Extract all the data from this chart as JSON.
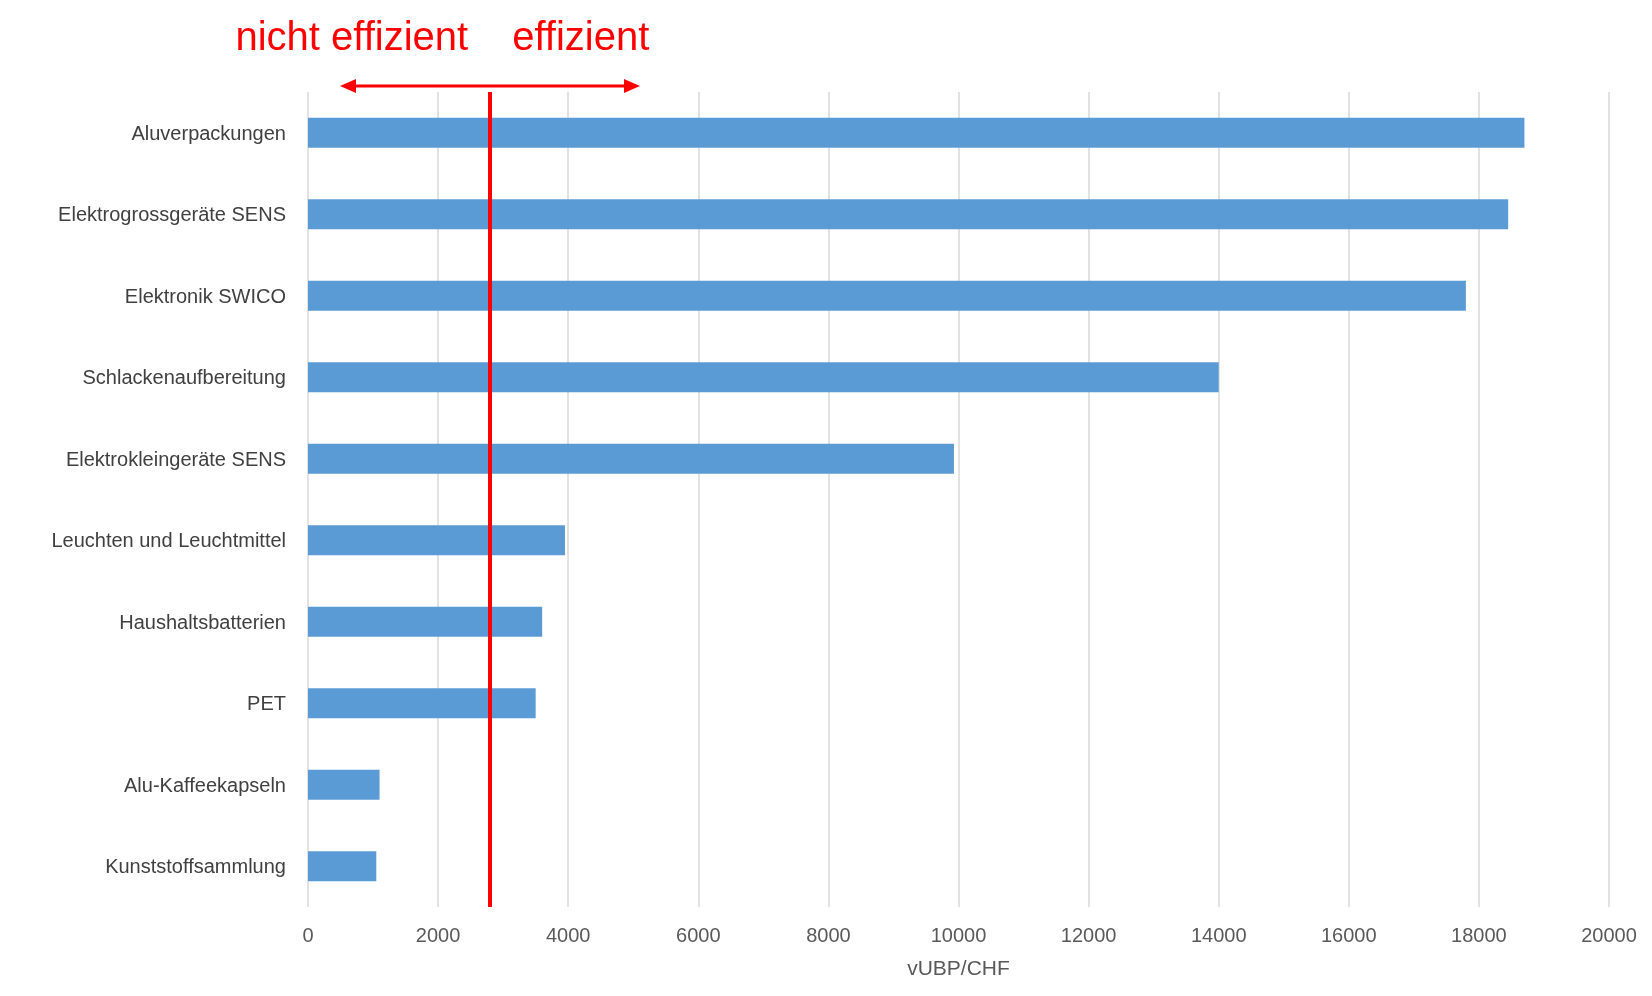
{
  "chart_data": {
    "type": "bar",
    "orientation": "horizontal",
    "xlabel": "vUBP/CHF",
    "categories": [
      "Aluverpackungen",
      "Elektrogrossgeräte SENS",
      "Elektronik SWICO",
      "Schlackenaufbereitung",
      "Elektrokleingeräte SENS",
      "Leuchten und Leuchtmittel",
      "Haushaltsbatterien",
      "PET",
      "Alu-Kaffeekapseln",
      "Kunststoffsammlung"
    ],
    "values": [
      18700,
      18450,
      17800,
      14000,
      9930,
      3950,
      3600,
      3500,
      1100,
      1050
    ],
    "color": "#5b9bd5",
    "xlim": [
      0,
      20000
    ],
    "xticks": [
      0,
      2000,
      4000,
      6000,
      8000,
      10000,
      12000,
      14000,
      16000,
      18000,
      20000
    ],
    "grid": "x",
    "ref_lines": [
      {
        "axis": "x",
        "value": 2800,
        "color": "#ff0000"
      }
    ],
    "annotations": [
      "nicht effizient",
      "effizient"
    ]
  }
}
